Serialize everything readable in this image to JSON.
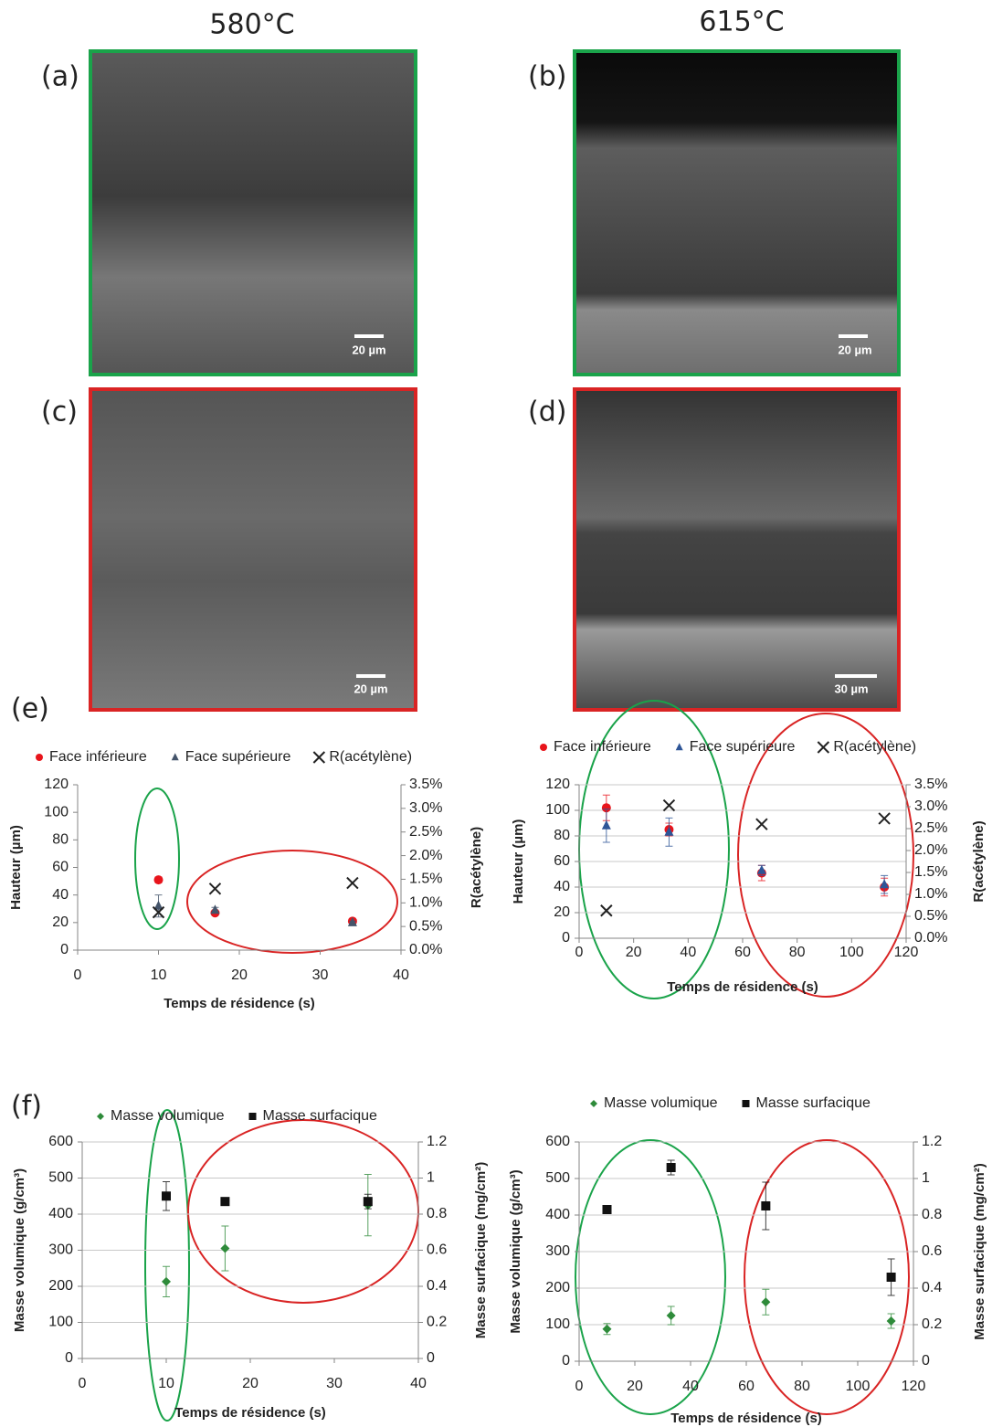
{
  "figure": {
    "columns": [
      "580°C",
      "615°C"
    ],
    "panels": [
      {
        "label": "(a)",
        "scale_bar": "20 µm"
      },
      {
        "label": "(b)",
        "scale_bar": "20 µm"
      },
      {
        "label": "(c)",
        "scale_bar": "20 µm"
      },
      {
        "label": "(d)",
        "scale_bar": "30 µm"
      }
    ],
    "chart_labels": [
      "(e)",
      "(f)"
    ]
  },
  "chart_data": [
    {
      "type": "scatter",
      "x_label": "Temps de résidence (s)",
      "y_label": "Hauteur (µm)",
      "y2_label": "R(acétylène)",
      "xlim": [
        0,
        40
      ],
      "xticks": [
        0,
        10,
        20,
        30,
        40
      ],
      "ylim": [
        0,
        120
      ],
      "yticks": [
        0,
        20,
        40,
        60,
        80,
        100,
        120
      ],
      "y2lim": [
        0,
        3.5
      ],
      "y2ticks": [
        {
          "value": 0,
          "label": "0.0%"
        },
        {
          "value": 0.5,
          "label": "0.5%"
        },
        {
          "value": 1,
          "label": "1.0%"
        },
        {
          "value": 1.5,
          "label": "1.5%"
        },
        {
          "value": 2,
          "label": "2.0%"
        },
        {
          "value": 2.5,
          "label": "2.5%"
        },
        {
          "value": 3,
          "label": "3.0%"
        },
        {
          "value": 3.5,
          "label": "3.5%"
        }
      ],
      "grid": false,
      "legend": "top",
      "series": [
        {
          "name": "Face inférieure",
          "color": "#e8141b",
          "marker": "circle",
          "x": [
            10,
            17,
            34
          ],
          "values": [
            51,
            27,
            21
          ],
          "errors": [
            2,
            1.5,
            1
          ]
        },
        {
          "name": "Face supérieure",
          "color": "#44546a",
          "marker": "triangle",
          "x": [
            10,
            17,
            34
          ],
          "values": [
            32,
            29,
            20
          ],
          "errors": [
            8,
            2,
            1
          ]
        },
        {
          "name": "R(acétylène)",
          "color": "#222222",
          "marker": "x",
          "axis": "y2",
          "x": [
            10,
            17,
            34
          ],
          "values": [
            0.8,
            1.3,
            1.42
          ]
        }
      ]
    },
    {
      "type": "scatter",
      "x_label": "Temps de résidence (s)",
      "y_label": "Hauteur (µm)",
      "y2_label": "R(acétylène)",
      "xlim": [
        0,
        120
      ],
      "xticks": [
        0,
        20,
        40,
        60,
        80,
        100,
        120
      ],
      "ylim": [
        0,
        120
      ],
      "yticks": [
        0,
        20,
        40,
        60,
        80,
        100,
        120
      ],
      "y2lim": [
        0,
        3.5
      ],
      "y2ticks": [
        {
          "value": 0,
          "label": "0.0%"
        },
        {
          "value": 0.5,
          "label": "0.5%"
        },
        {
          "value": 1,
          "label": "1.0%"
        },
        {
          "value": 1.5,
          "label": "1.5%"
        },
        {
          "value": 2,
          "label": "2.0%"
        },
        {
          "value": 2.5,
          "label": "2.5%"
        },
        {
          "value": 3,
          "label": "3.0%"
        },
        {
          "value": 3.5,
          "label": "3.5%"
        }
      ],
      "grid": true,
      "legend": "top",
      "series": [
        {
          "name": "Face inférieure",
          "color": "#e8141b",
          "marker": "circle",
          "x": [
            10,
            33,
            67,
            112
          ],
          "values": [
            102,
            85,
            51,
            40
          ],
          "errors": [
            10,
            5,
            6,
            7
          ]
        },
        {
          "name": "Face supérieure",
          "color": "#2e5597",
          "marker": "triangle",
          "x": [
            10,
            33,
            67,
            112
          ],
          "values": [
            88,
            83,
            53,
            42
          ],
          "errors": [
            13,
            11,
            4,
            7
          ]
        },
        {
          "name": "R(acétylène)",
          "color": "#222222",
          "marker": "x",
          "axis": "y2",
          "x": [
            10,
            33,
            67,
            112
          ],
          "values": [
            0.63,
            3.03,
            2.6,
            2.73
          ]
        }
      ]
    },
    {
      "type": "scatter",
      "x_label": "Temps de résidence (s)",
      "y_label": "Masse volumique (g/cm³)",
      "y2_label": "Masse surfacique (mg/cm²)",
      "xlim": [
        0,
        40
      ],
      "xticks": [
        0,
        10,
        20,
        30,
        40
      ],
      "ylim": [
        0,
        600
      ],
      "yticks": [
        0,
        100,
        200,
        300,
        400,
        500,
        600
      ],
      "y2lim": [
        0,
        1.2
      ],
      "y2ticks": [
        0,
        0.2,
        0.4,
        0.6,
        0.8,
        1,
        1.2
      ],
      "grid": true,
      "legend": "top",
      "series": [
        {
          "name": "Masse volumique",
          "color": "#2e8b3a",
          "marker": "diamond",
          "x": [
            10,
            17,
            34
          ],
          "values": [
            213,
            305,
            425
          ],
          "errors": [
            42,
            62,
            85
          ]
        },
        {
          "name": "Masse surfacique",
          "color": "#111111",
          "marker": "square",
          "axis": "y2",
          "x": [
            10,
            17,
            34
          ],
          "values": [
            0.9,
            0.87,
            0.87
          ],
          "errors": [
            0.08,
            0.02,
            0.04
          ]
        }
      ]
    },
    {
      "type": "scatter",
      "x_label": "Temps de résidence (s)",
      "y_label": "Masse volumique (g/cm³)",
      "y2_label": "Masse surfacique (mg/cm²)",
      "xlim": [
        0,
        120
      ],
      "xticks": [
        0,
        20,
        40,
        60,
        80,
        100,
        120
      ],
      "ylim": [
        0,
        600
      ],
      "yticks": [
        0,
        100,
        200,
        300,
        400,
        500,
        600
      ],
      "y2lim": [
        0,
        1.2
      ],
      "y2ticks": [
        0,
        0.2,
        0.4,
        0.6,
        0.8,
        1,
        1.2
      ],
      "grid": true,
      "legend": "top",
      "series": [
        {
          "name": "Masse volumique",
          "color": "#2e8b3a",
          "marker": "diamond",
          "x": [
            10,
            33,
            67,
            112
          ],
          "values": [
            88,
            125,
            162,
            110
          ],
          "errors": [
            15,
            25,
            35,
            20
          ]
        },
        {
          "name": "Masse surfacique",
          "color": "#111111",
          "marker": "square",
          "axis": "y2",
          "x": [
            10,
            33,
            67,
            112
          ],
          "values": [
            0.83,
            1.06,
            0.85,
            0.46
          ],
          "errors": [
            0.02,
            0.04,
            0.13,
            0.1
          ]
        }
      ]
    }
  ]
}
